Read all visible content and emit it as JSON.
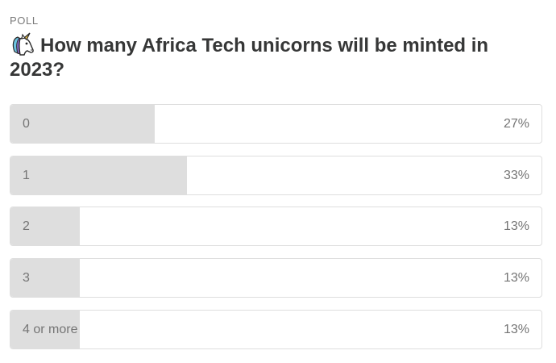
{
  "poll": {
    "label": "POLL",
    "question": "How many Africa Tech unicorns will be minted in 2023?",
    "question_icon": "unicorn-icon",
    "options": [
      {
        "label": "0",
        "percent_text": "27%",
        "percent": 27
      },
      {
        "label": "1",
        "percent_text": "33%",
        "percent": 33
      },
      {
        "label": "2",
        "percent_text": "13%",
        "percent": 13
      },
      {
        "label": "3",
        "percent_text": "13%",
        "percent": 13
      },
      {
        "label": "4 or more",
        "percent_text": "13%",
        "percent": 13
      }
    ]
  },
  "colors": {
    "bar_fill": "#dedede",
    "border": "#dedede",
    "text": "#363737",
    "muted_text": "#757575"
  }
}
